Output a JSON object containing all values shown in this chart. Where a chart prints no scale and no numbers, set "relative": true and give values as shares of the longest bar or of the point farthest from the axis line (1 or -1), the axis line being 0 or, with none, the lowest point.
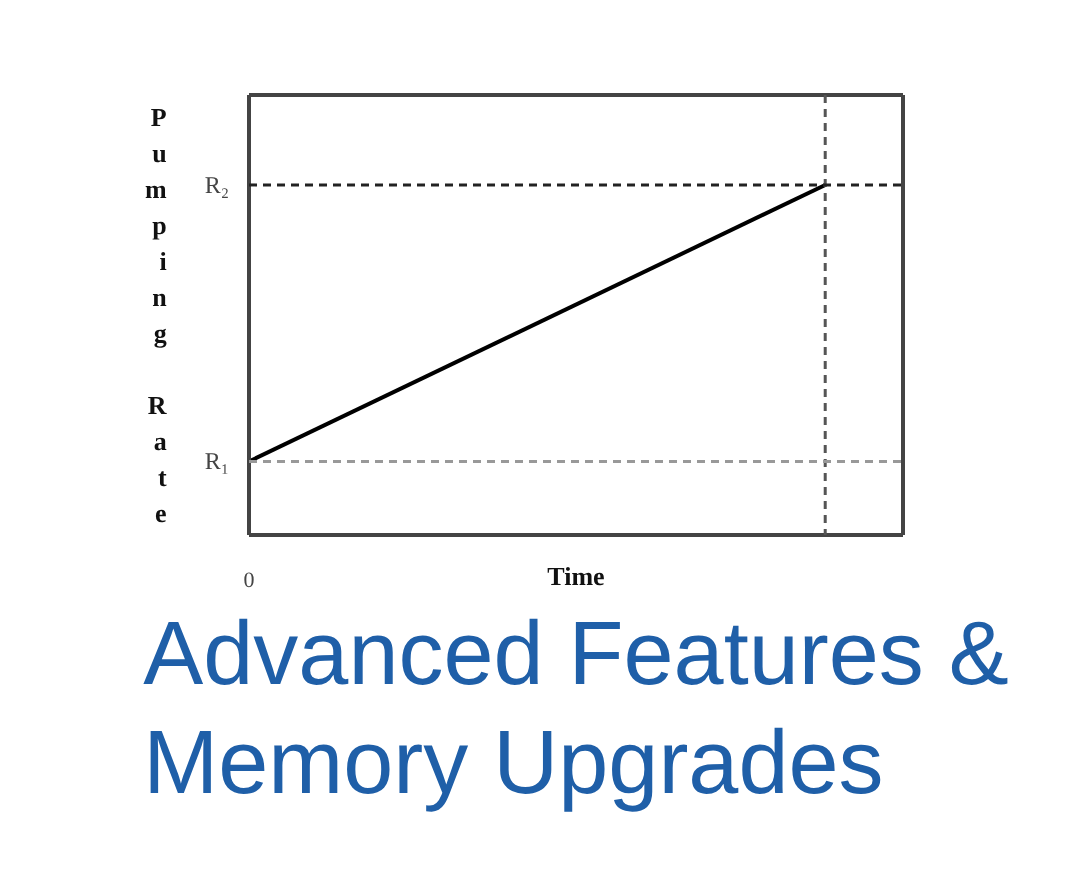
{
  "chart_data": {
    "type": "line",
    "relative": true,
    "title": "Advanced Features & Memory Upgrades",
    "xlabel": "Time",
    "ylabel": "Pumping Rate",
    "categories": [
      null,
      null
    ],
    "line_style": "solid",
    "series": [
      {
        "color": "#000000",
        "values": [
          0.21,
          1
        ]
      }
    ],
    "ref_lines": [
      {
        "axis": "y",
        "value": 0.21,
        "label": "R₁",
        "color": "#999999",
        "line_style": "dashed"
      },
      {
        "axis": "y",
        "value": 1,
        "label": "R₂",
        "color": "#222222",
        "line_style": "dashed"
      }
    ],
    "annotations": [
      "0"
    ]
  }
}
